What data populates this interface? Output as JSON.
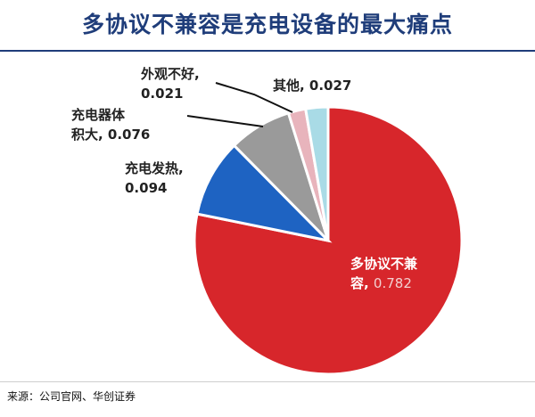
{
  "title": "多协议不兼容是充电设备的最大痛点",
  "source": "来源：公司官网、华创证券",
  "chart_data": {
    "type": "pie",
    "slices": [
      {
        "label": "多协议不兼容",
        "value": 0.782,
        "value_text": "0.782",
        "color": "#d7262b"
      },
      {
        "label": "充电发热",
        "value": 0.094,
        "value_text": "0.094",
        "color": "#1e63c2"
      },
      {
        "label": "充电器体积大",
        "value": 0.076,
        "value_text": "0.076",
        "color": "#9a9a9a"
      },
      {
        "label": "外观不好",
        "value": 0.021,
        "value_text": "0.021",
        "color": "#e8b4bc"
      },
      {
        "label": "其他",
        "value": 0.027,
        "value_text": "0.027",
        "color": "#a9dbe6"
      }
    ],
    "display_labels": [
      {
        "line1": "多协议不兼",
        "line2": "容, ",
        "value": "0.782"
      },
      {
        "line1": "充电发热,",
        "value": "0.094"
      },
      {
        "line1": "充电器体",
        "line2": "积大, ",
        "value": "0.076"
      },
      {
        "line1": "外观不好,",
        "value": "0.021"
      },
      {
        "line1": "其他, ",
        "value": "0.027"
      }
    ]
  }
}
